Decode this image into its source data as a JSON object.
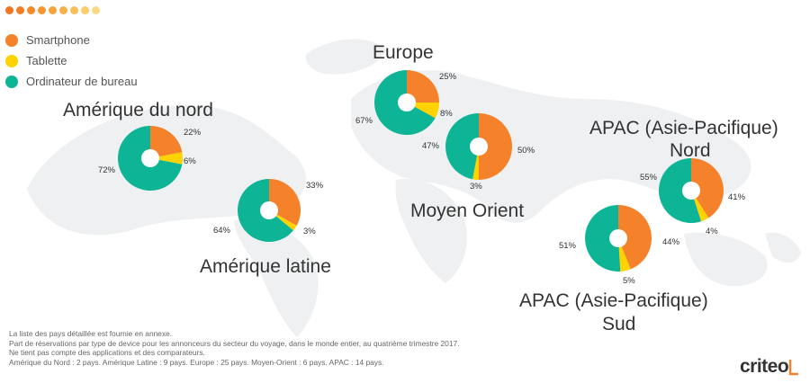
{
  "colors": {
    "smartphone": "#F5822A",
    "tablet": "#FFD200",
    "desktop": "#0DB596",
    "map": "#EEF0F2",
    "dots": [
      "#F47521",
      "#F47E24",
      "#F58A2A",
      "#F69631",
      "#F7A33B",
      "#F8B148",
      "#F9BE58",
      "#FACC6B",
      "#FBDA86"
    ]
  },
  "legend": {
    "items": [
      {
        "label": "Smartphone",
        "color": "#F5822A"
      },
      {
        "label": "Tablette",
        "color": "#FFD200"
      },
      {
        "label": "Ordinateur de bureau",
        "color": "#0DB596"
      }
    ]
  },
  "chart_data": {
    "type": "pie",
    "series_names": [
      "Smartphone",
      "Tablette",
      "Ordinateur de bureau"
    ],
    "charts": [
      {
        "region": "Amérique du nord",
        "smartphone": 22,
        "tablet": 6,
        "desktop": 72,
        "labels": {
          "smartphone": "22%",
          "tablet": "6%",
          "desktop": "72%"
        }
      },
      {
        "region": "Amérique latine",
        "smartphone": 33,
        "tablet": 3,
        "desktop": 64,
        "labels": {
          "smartphone": "33%",
          "tablet": "3%",
          "desktop": "64%"
        }
      },
      {
        "region": "Europe",
        "smartphone": 25,
        "tablet": 8,
        "desktop": 67,
        "labels": {
          "smartphone": "25%",
          "tablet": "8%",
          "desktop": "67%"
        }
      },
      {
        "region": "Moyen Orient",
        "smartphone": 50,
        "tablet": 3,
        "desktop": 47,
        "labels": {
          "smartphone": "50%",
          "tablet": "3%",
          "desktop": "47%"
        }
      },
      {
        "region": "APAC (Asie-Pacifique) Nord",
        "smartphone": 41,
        "tablet": 4,
        "desktop": 55,
        "labels": {
          "smartphone": "41%",
          "tablet": "4%",
          "desktop": "55%"
        }
      },
      {
        "region": "APAC (Asie-Pacifique) Sud",
        "smartphone": 44,
        "tablet": 5,
        "desktop": 51,
        "labels": {
          "smartphone": "44%",
          "tablet": "5%",
          "desktop": "51%"
        }
      }
    ]
  },
  "titles": {
    "north_america": "Amérique du nord",
    "latin_america": "Amérique latine",
    "europe": "Europe",
    "middle_east": "Moyen Orient",
    "apac_north_1": "APAC (Asie-Pacifique)",
    "apac_north_2": "Nord",
    "apac_south_1": "APAC (Asie-Pacifique)",
    "apac_south_2": "Sud"
  },
  "footnotes": [
    "La liste des pays détaillée est fournie en annexe.",
    "Part de réservations par type de device pour les annonceurs du secteur du voyage, dans le monde entier, au quatrième trimestre 2017.",
    "Ne tient pas compte des applications et des comparateurs.",
    "Amérique du Nord : 2 pays. Amérique Latine : 9 pays. Europe : 25 pays. Moyen-Orient : 6 pays. APAC : 14 pays."
  ],
  "brand": {
    "logo_text": "criteo"
  }
}
